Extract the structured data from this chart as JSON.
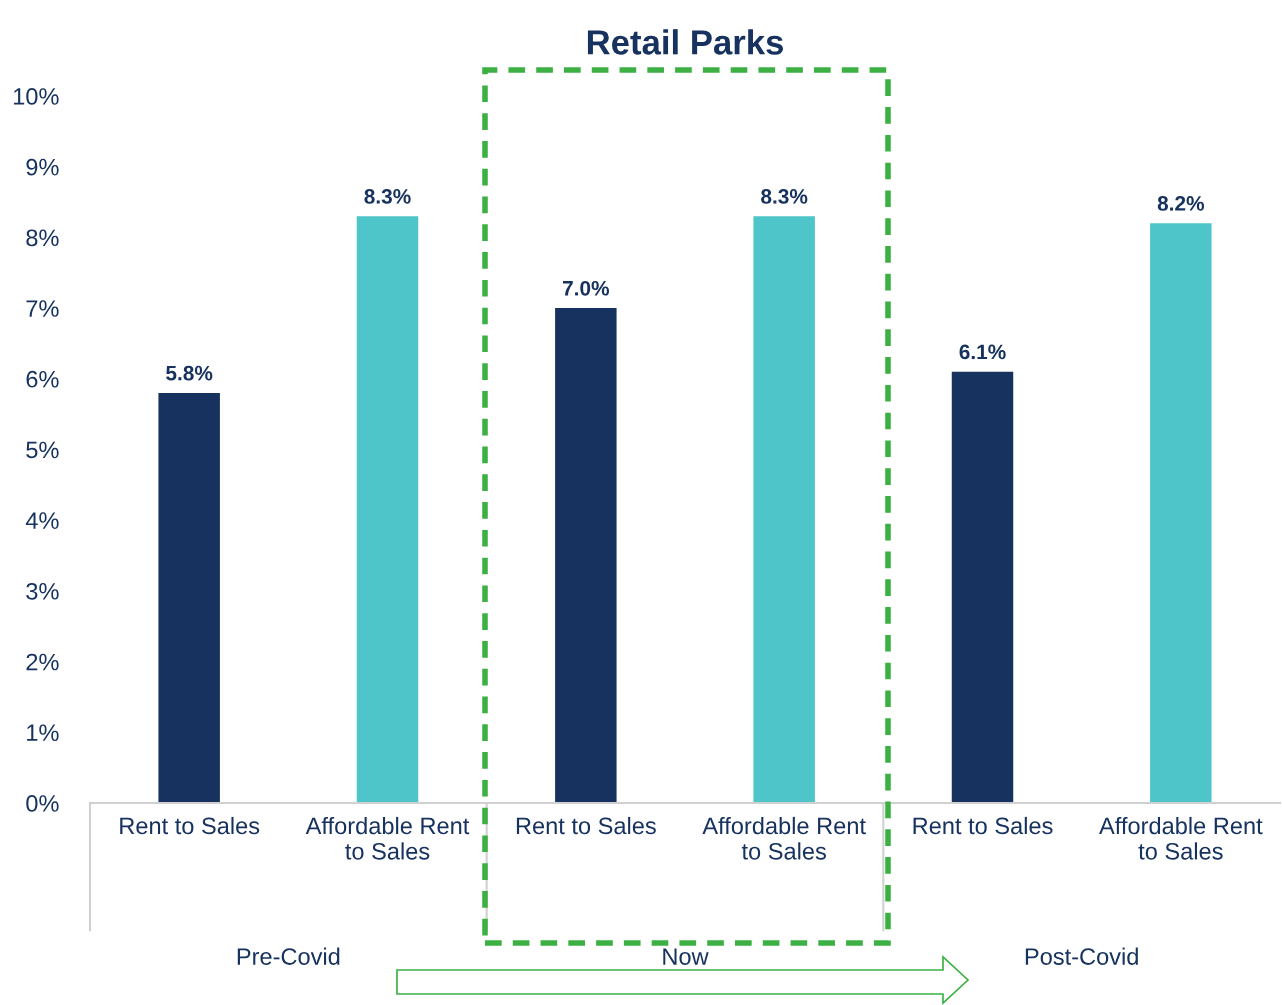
{
  "chart_data": {
    "type": "bar",
    "title": "Retail Parks",
    "categories": [
      "Rent to Sales",
      "Affordable Rent\nto Sales",
      "Rent to Sales",
      "Affordable Rent\nto Sales",
      "Rent to Sales",
      "Affordable Rent\nto Sales"
    ],
    "values": [
      5.8,
      8.3,
      7.0,
      8.3,
      6.1,
      8.2
    ],
    "colors": [
      "#17325e",
      "#4dc5c9",
      "#17325e",
      "#4dc5c9",
      "#17325e",
      "#4dc5c9"
    ],
    "value_labels": [
      "5.8%",
      "8.3%",
      "7.0%",
      "8.3%",
      "6.1%",
      "8.2%"
    ],
    "annotations": [
      "Pre-Covid",
      "Now",
      "Post-Covid"
    ],
    "ylim": [
      0,
      10
    ],
    "yticks": [
      {
        "value": 0,
        "label": "0%"
      },
      {
        "value": 1,
        "label": "1%"
      },
      {
        "value": 2,
        "label": "2%"
      },
      {
        "value": 3,
        "label": "3%"
      },
      {
        "value": 4,
        "label": "4%"
      },
      {
        "value": 5,
        "label": "5%"
      },
      {
        "value": 6,
        "label": "6%"
      },
      {
        "value": 7,
        "label": "7%"
      },
      {
        "value": 8,
        "label": "8%"
      },
      {
        "value": 9,
        "label": "9%"
      },
      {
        "value": 10,
        "label": "10%"
      }
    ],
    "grid": false
  }
}
